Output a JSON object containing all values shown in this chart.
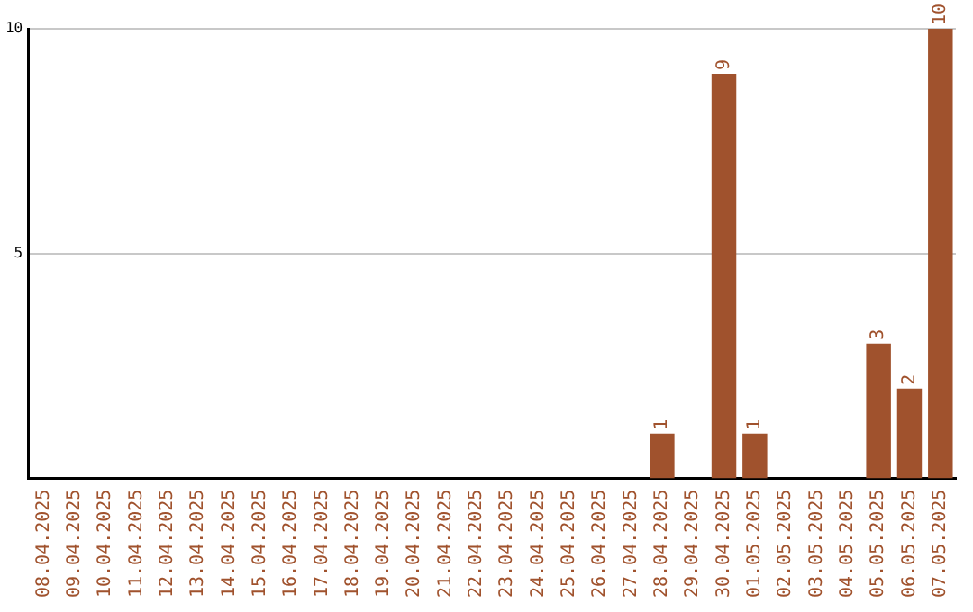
{
  "chart_data": {
    "type": "bar",
    "categories": [
      "08.04.2025",
      "09.04.2025",
      "10.04.2025",
      "11.04.2025",
      "12.04.2025",
      "13.04.2025",
      "14.04.2025",
      "15.04.2025",
      "16.04.2025",
      "17.04.2025",
      "18.04.2025",
      "19.04.2025",
      "20.04.2025",
      "21.04.2025",
      "22.04.2025",
      "23.04.2025",
      "24.04.2025",
      "25.04.2025",
      "26.04.2025",
      "27.04.2025",
      "28.04.2025",
      "29.04.2025",
      "30.04.2025",
      "01.05.2025",
      "02.05.2025",
      "03.05.2025",
      "04.05.2025",
      "05.05.2025",
      "06.05.2025",
      "07.05.2025"
    ],
    "values": [
      0,
      0,
      0,
      0,
      0,
      0,
      0,
      0,
      0,
      0,
      0,
      0,
      0,
      0,
      0,
      0,
      0,
      0,
      0,
      0,
      1,
      0,
      9,
      1,
      0,
      0,
      0,
      3,
      2,
      10
    ],
    "value_labels": [
      null,
      null,
      null,
      null,
      null,
      null,
      null,
      null,
      null,
      null,
      null,
      null,
      null,
      null,
      null,
      null,
      null,
      null,
      null,
      null,
      "1",
      null,
      "9",
      "1",
      null,
      null,
      null,
      "3",
      "2",
      "10"
    ],
    "color": "#a0522d",
    "ylim": [
      0,
      10
    ],
    "yticks": [
      5,
      10
    ],
    "grid": "y",
    "legend": false
  }
}
